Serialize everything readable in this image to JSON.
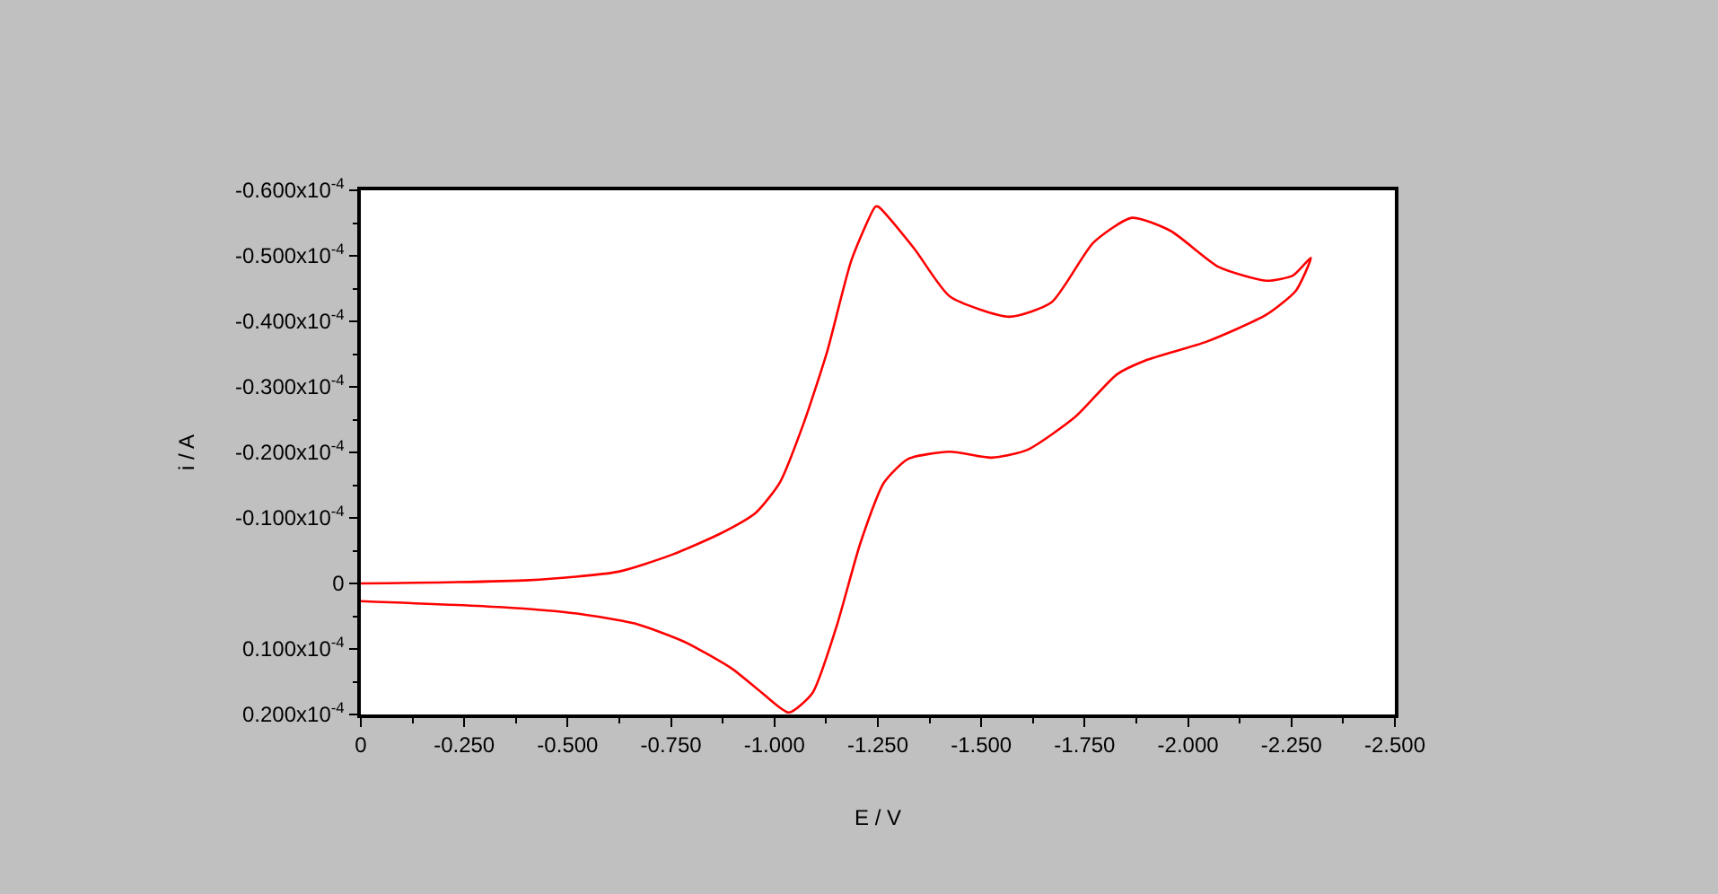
{
  "chart_data": {
    "type": "line",
    "xlabel": "E / V",
    "ylabel": "i / A",
    "x": [
      0,
      -0.407,
      -0.623,
      -0.753,
      -0.869,
      -0.955,
      -1.013,
      -1.071,
      -1.128,
      -1.186,
      -1.244,
      -1.251,
      -1.338,
      -1.424,
      -1.568,
      -1.67,
      -1.771,
      -1.864,
      -1.958,
      -2.074,
      -2.189,
      -2.254,
      -2.297,
      -2.261,
      -2.189,
      -2.045,
      -1.9,
      -1.828,
      -1.727,
      -1.612,
      -1.525,
      -1.424,
      -1.323,
      -1.265,
      -1.208,
      -1.15,
      -1.092,
      -1.035,
      -0.97,
      -0.897,
      -0.782,
      -0.667,
      -0.522,
      -0.335,
      0
    ],
    "series": [
      {
        "color": "#ff0000",
        "values": [
          0,
          -5e-07,
          -1.8e-06,
          -4.4e-06,
          -7.6e-06,
          -1.08e-05,
          -1.54e-05,
          -2.45e-05,
          -3.55e-05,
          -4.93e-05,
          -5.75e-05,
          -5.75e-05,
          -5.11e-05,
          -4.38e-05,
          -4.07e-05,
          -4.29e-05,
          -5.2e-05,
          -5.58e-05,
          -5.38e-05,
          -4.83e-05,
          -4.62e-05,
          -4.7e-05,
          -4.97e-05,
          -4.47e-05,
          -4.1e-05,
          -3.69e-05,
          -3.41e-05,
          -3.19e-05,
          -2.54e-05,
          -2.04e-05,
          -1.92e-05,
          -2.01e-05,
          -1.9e-05,
          -1.54e-05,
          -6.2e-06,
          6.6e-06,
          1.67e-05,
          1.97e-05,
          1.67e-05,
          1.3e-05,
          8.9e-06,
          6.2e-06,
          4.6e-06,
          3.6e-06,
          2.7e-06
        ]
      }
    ],
    "xlim": [
      0,
      -2.5
    ],
    "xticks": [
      {
        "value": 0,
        "label": "0"
      },
      {
        "value": -0.25,
        "label": "-0.250"
      },
      {
        "value": -0.5,
        "label": "-0.500"
      },
      {
        "value": -0.75,
        "label": "-0.750"
      },
      {
        "value": -1.0,
        "label": "-1.000"
      },
      {
        "value": -1.25,
        "label": "-1.250"
      },
      {
        "value": -1.5,
        "label": "-1.500"
      },
      {
        "value": -1.75,
        "label": "-1.750"
      },
      {
        "value": -2.0,
        "label": "-2.000"
      },
      {
        "value": -2.25,
        "label": "-2.250"
      },
      {
        "value": -2.5,
        "label": "-2.500"
      }
    ],
    "ylim": [
      2e-05,
      -6e-05
    ],
    "yticks": [
      {
        "value": -6e-05,
        "label": "-0.600x10$^{-4}$"
      },
      {
        "value": -5e-05,
        "label": "-0.500x10$^{-4}$"
      },
      {
        "value": -4e-05,
        "label": "-0.400x10$^{-4}$"
      },
      {
        "value": -3e-05,
        "label": "-0.300x10$^{-4}$"
      },
      {
        "value": -2e-05,
        "label": "-0.200x10$^{-4}$"
      },
      {
        "value": -1e-05,
        "label": "-0.100x10$^{-4}$"
      },
      {
        "value": 0,
        "label": "0"
      },
      {
        "value": 1e-05,
        "label": "0.100x10$^{-4}$"
      },
      {
        "value": 2e-05,
        "label": "0.200x10$^{-4}$"
      }
    ],
    "marker": "none",
    "line_style": "solid"
  }
}
